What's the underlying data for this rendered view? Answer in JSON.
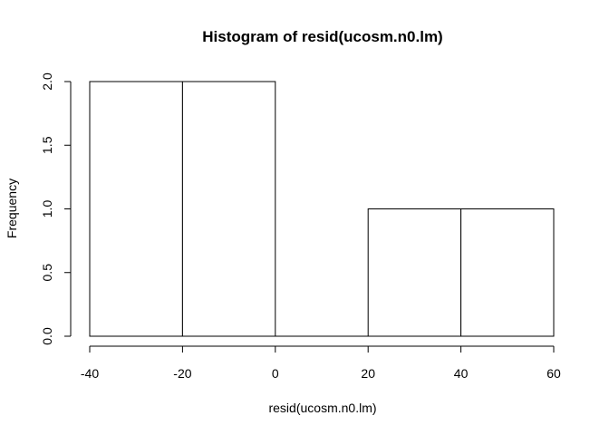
{
  "chart_data": {
    "type": "bar",
    "title": "Histogram of resid(ucosm.n0.lm)",
    "xlabel": "resid(ucosm.n0.lm)",
    "ylabel": "Frequency",
    "bins": [
      {
        "from": -40,
        "to": -20,
        "count": 2
      },
      {
        "from": -20,
        "to": 0,
        "count": 2
      },
      {
        "from": 0,
        "to": 20,
        "count": 0
      },
      {
        "from": 20,
        "to": 40,
        "count": 1
      },
      {
        "from": 40,
        "to": 60,
        "count": 1
      }
    ],
    "xticks": [
      "-40",
      "-20",
      "0",
      "20",
      "40",
      "60"
    ],
    "yticks": [
      "0.0",
      "0.5",
      "1.0",
      "1.5",
      "2.0"
    ],
    "xlim": [
      -40,
      60
    ],
    "ylim": [
      0,
      2
    ],
    "grid": false,
    "bar_fill": "#ffffff",
    "bar_stroke": "#000000"
  }
}
